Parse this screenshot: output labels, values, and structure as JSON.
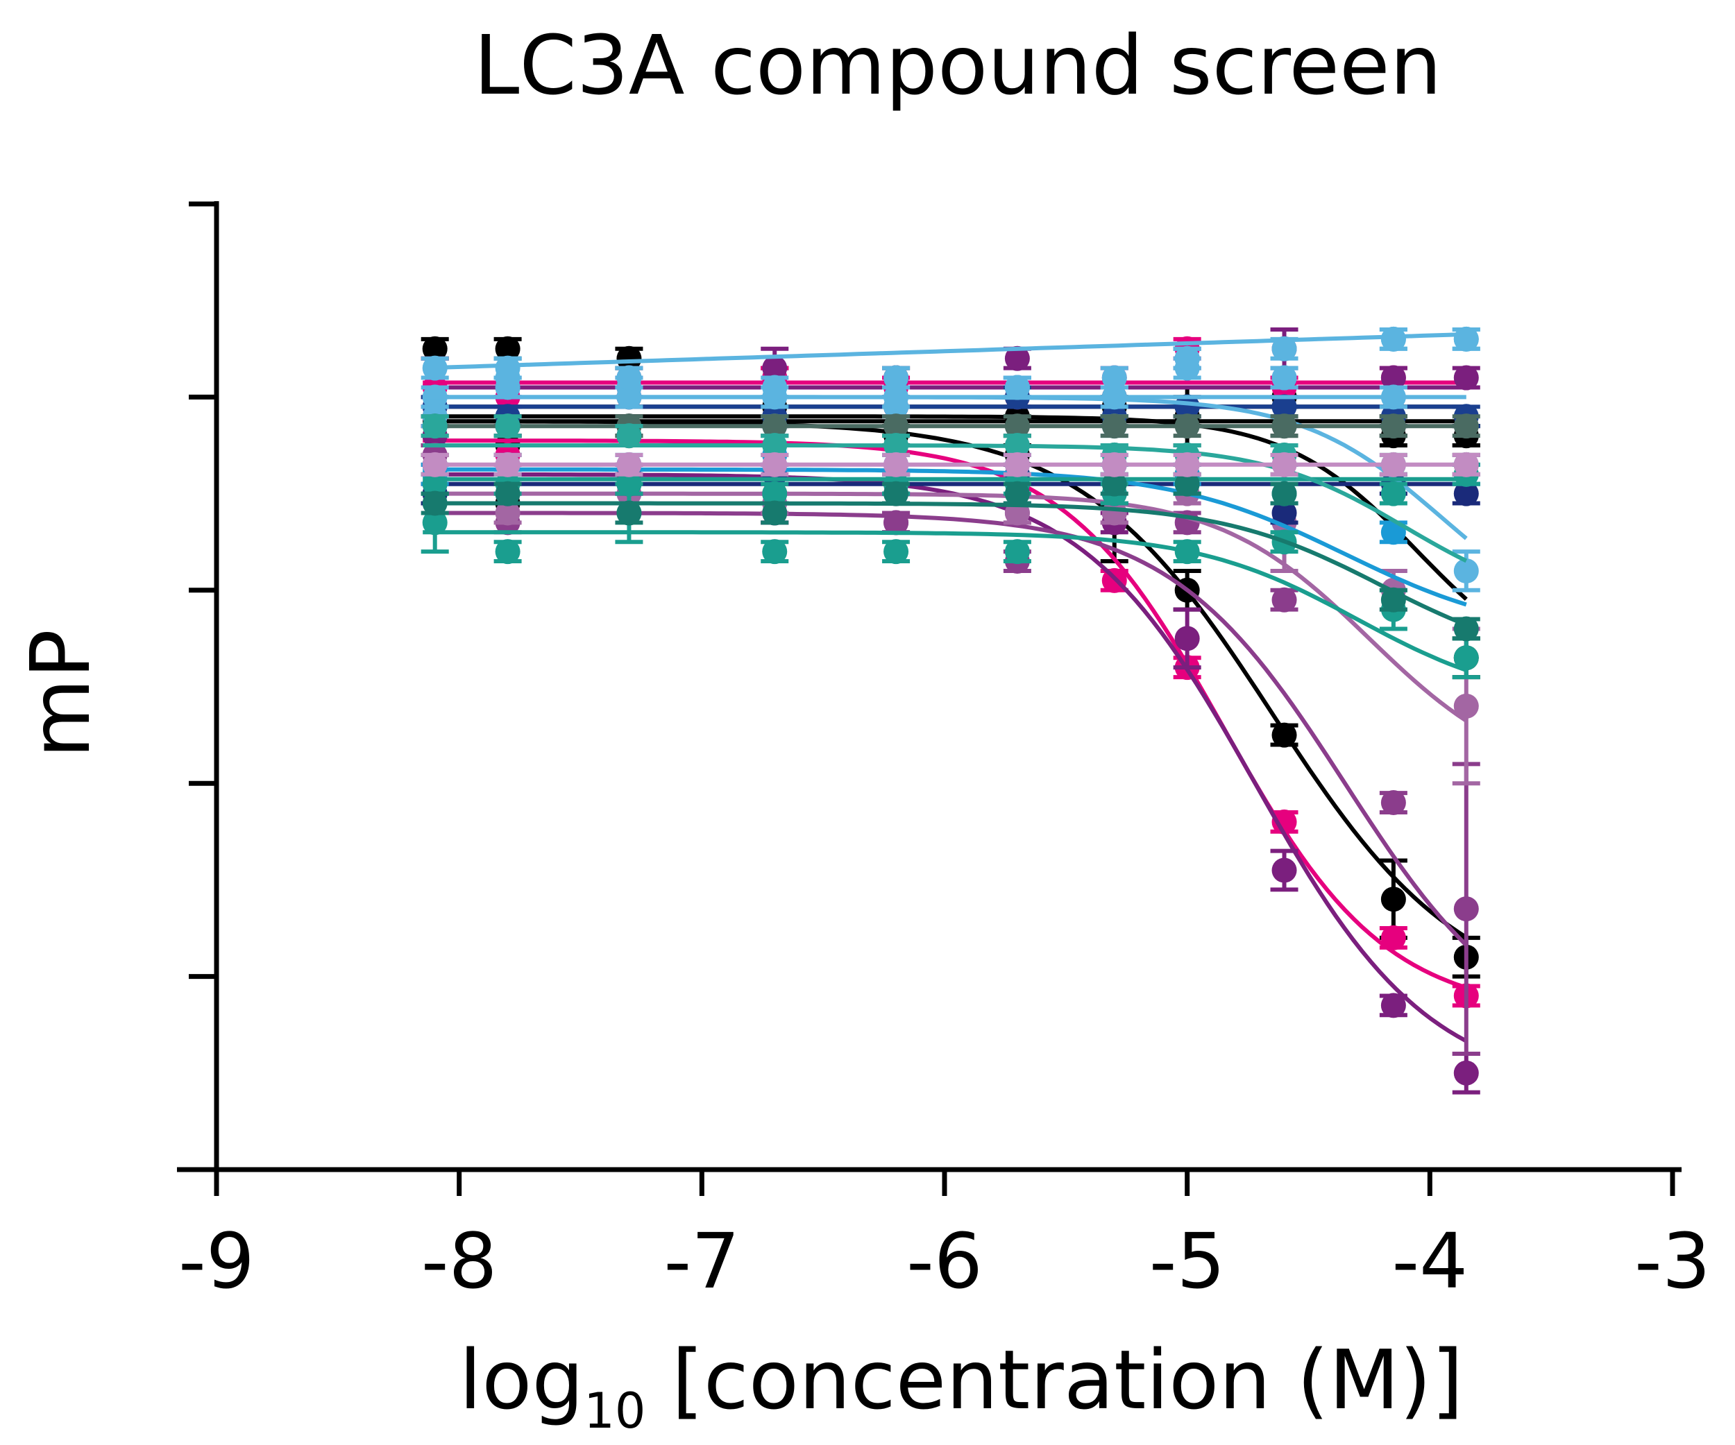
{
  "chart_data": {
    "type": "scatter",
    "title": "LC3A compound screen",
    "xlabel_main": "log",
    "xlabel_sub": "10",
    "xlabel_rest": " [concentration (M)]",
    "ylabel": "mP",
    "xlim": [
      -9,
      -3
    ],
    "ylim": [
      0,
      100
    ],
    "x_ticks": [
      -9,
      -8,
      -7,
      -6,
      -5,
      -4,
      -3
    ],
    "x_tick_labels": [
      "-9",
      "-8",
      "-7",
      "-6",
      "-5",
      "-4",
      "-3"
    ],
    "y_ticks": [
      0,
      20,
      40,
      60,
      80,
      100
    ],
    "y_tick_labels": [
      "",
      "",
      "",
      "",
      "",
      ""
    ],
    "x": [
      -8.1,
      -7.8,
      -7.3,
      -6.7,
      -6.2,
      -5.7,
      -5.3,
      -5.0,
      -4.6,
      -4.15,
      -3.85
    ],
    "series": [
      {
        "color": "#000000",
        "values": [
          76,
          77,
          77,
          79,
          77,
          78,
          67,
          60,
          45,
          28,
          22
        ],
        "errors": [
          1,
          1,
          1,
          1,
          2,
          3,
          4,
          2,
          1,
          4,
          2
        ],
        "curve": "sigmoid",
        "top": 77.5,
        "bottom": 17,
        "ec50": -4.65,
        "hill": 1.1
      },
      {
        "color": "#000000",
        "values": [
          73,
          75,
          76,
          78,
          76,
          77,
          79,
          78,
          80,
          77,
          76
        ],
        "errors": [
          1,
          1,
          1,
          1,
          1,
          1,
          1,
          3,
          1,
          1,
          1
        ],
        "curve": "sigmoid",
        "top": 78,
        "bottom": 50,
        "ec50": -4.05,
        "hill": 1.6
      },
      {
        "color": "#000000",
        "values": [
          70,
          69,
          71,
          70,
          71,
          74,
          79,
          78,
          77,
          77,
          53
        ],
        "errors": [
          1,
          1,
          1,
          1,
          1,
          1,
          1,
          1,
          1,
          1,
          2
        ],
        "curve": "flat",
        "level": 77.5
      },
      {
        "color": "#000000",
        "values": [
          85,
          85,
          84,
          82,
          82,
          80,
          80,
          79,
          80,
          76,
          76
        ],
        "errors": [
          1,
          1,
          1,
          1,
          1,
          1,
          1,
          1,
          1,
          1,
          1
        ],
        "curve": "flat",
        "level": 79
      },
      {
        "color": "#e6007e",
        "values": [
          81,
          74,
          80,
          82,
          79,
          81,
          61,
          52,
          36,
          24,
          18
        ],
        "errors": [
          3,
          1,
          1,
          1,
          1,
          1,
          1,
          1,
          1,
          1,
          1
        ],
        "curve": "sigmoid",
        "top": 75.5,
        "bottom": 16,
        "ec50": -4.85,
        "hill": 1.3
      },
      {
        "color": "#e6007e",
        "values": [
          78,
          80,
          81,
          82,
          81,
          80,
          82,
          85,
          81,
          82,
          73
        ],
        "errors": [
          1,
          1,
          1,
          1,
          1,
          1,
          1,
          1,
          1,
          1,
          1
        ],
        "curve": "flat",
        "level": 81.5
      },
      {
        "color": "#7b1f7e",
        "values": [
          76,
          77,
          72,
          68,
          67,
          68,
          67,
          55,
          31,
          17,
          10
        ],
        "errors": [
          1,
          1,
          1,
          1,
          1,
          1,
          1,
          3,
          2,
          1,
          2
        ],
        "curve": "sigmoid",
        "top": 72,
        "bottom": 8,
        "ec50": -4.72,
        "hill": 1.2
      },
      {
        "color": "#7b1f7e",
        "values": [
          79,
          81,
          82,
          83,
          82,
          84,
          80,
          84,
          85,
          82,
          82
        ],
        "errors": [
          1,
          1,
          1,
          2,
          1,
          1,
          1,
          1,
          2,
          1,
          1
        ],
        "curve": "flat",
        "level": 81
      },
      {
        "color": "#8b3d8c",
        "values": [
          74,
          67,
          72,
          68,
          67,
          63,
          68,
          67,
          59,
          38,
          27
        ],
        "errors": [
          1,
          1,
          1,
          1,
          1,
          1,
          1,
          1,
          1,
          1,
          15
        ],
        "curve": "sigmoid",
        "top": 68,
        "bottom": 12,
        "ec50": -4.35,
        "hill": 1.2
      },
      {
        "color": "#a366a3",
        "values": [
          71,
          68,
          70,
          69,
          70,
          68,
          68,
          70,
          67,
          60,
          48
        ],
        "errors": [
          1,
          1,
          1,
          1,
          1,
          1,
          1,
          1,
          5,
          2,
          8
        ],
        "curve": "sigmoid",
        "top": 70,
        "bottom": 40,
        "ec50": -4.25,
        "hill": 1.4
      },
      {
        "color": "#1a2a7a",
        "values": [
          70,
          70,
          71,
          72,
          71,
          72,
          70,
          72,
          68,
          71,
          70
        ],
        "errors": [
          1,
          1,
          1,
          1,
          1,
          1,
          1,
          1,
          1,
          1,
          1
        ],
        "curve": "flat",
        "level": 71
      },
      {
        "color": "#1a3f8f",
        "values": [
          79,
          78,
          80,
          78,
          79,
          80,
          78,
          79,
          79,
          78,
          78
        ],
        "errors": [
          1,
          1,
          1,
          1,
          1,
          1,
          1,
          1,
          1,
          1,
          1
        ],
        "curve": "flat",
        "level": 79
      },
      {
        "color": "#1a9ad6",
        "values": [
          72,
          73,
          73,
          74,
          73,
          73,
          73,
          72,
          70,
          66,
          72
        ],
        "errors": [
          1,
          1,
          1,
          1,
          1,
          1,
          1,
          1,
          1,
          1,
          1
        ],
        "curve": "sigmoid",
        "top": 72.5,
        "bottom": 55,
        "ec50": -4.35,
        "hill": 1.2
      },
      {
        "color": "#5bb4e0",
        "values": [
          80,
          82,
          81,
          77,
          79,
          81,
          77,
          83,
          82,
          86,
          86
        ],
        "errors": [
          1,
          2,
          1,
          1,
          1,
          1,
          1,
          1,
          1,
          1,
          1
        ],
        "curve": "flat",
        "level": 80
      },
      {
        "color": "#5bb4e0",
        "values": [
          78,
          81,
          80,
          80,
          80,
          81,
          80,
          84,
          82,
          80,
          62
        ],
        "errors": [
          1,
          1,
          1,
          1,
          1,
          1,
          1,
          1,
          1,
          1,
          2
        ],
        "curve": "sigmoid",
        "top": 80,
        "bottom": 55,
        "ec50": -3.95,
        "hill": 1.5
      },
      {
        "color": "#5bb4e0",
        "values": [
          83,
          83,
          82,
          81,
          82,
          81,
          82,
          84,
          85,
          86,
          86
        ],
        "errors": [
          1,
          1,
          1,
          1,
          1,
          1,
          1,
          1,
          1,
          1,
          1
        ],
        "curve": "rising",
        "from": 83,
        "to": 86.5
      },
      {
        "color": "#1a9e8f",
        "values": [
          67,
          64,
          68,
          64,
          64,
          64,
          74,
          64,
          65,
          58,
          53
        ],
        "errors": [
          3,
          1,
          3,
          1,
          1,
          1,
          1,
          1,
          1,
          2,
          2
        ],
        "curve": "sigmoid",
        "top": 66,
        "bottom": 48,
        "ec50": -4.3,
        "hill": 1.3
      },
      {
        "color": "#1a9e8f",
        "values": [
          71,
          71,
          71,
          70,
          71,
          71,
          70,
          71,
          70,
          70,
          72
        ],
        "errors": [
          1,
          1,
          1,
          1,
          1,
          1,
          1,
          1,
          1,
          1,
          1
        ],
        "curve": "flat",
        "level": 71.5
      },
      {
        "color": "#177a6e",
        "values": [
          69,
          70,
          68,
          68,
          70,
          70,
          71,
          71,
          70,
          59,
          56
        ],
        "errors": [
          1,
          1,
          1,
          1,
          1,
          1,
          1,
          1,
          1,
          1,
          1
        ],
        "curve": "sigmoid",
        "top": 69,
        "bottom": 52,
        "ec50": -4.2,
        "hill": 1.3
      },
      {
        "color": "#4a6b62",
        "values": [
          77,
          77,
          77,
          77,
          77,
          77,
          77,
          77,
          77,
          77,
          77
        ],
        "errors": [
          1,
          1,
          1,
          1,
          1,
          1,
          1,
          1,
          1,
          1,
          1
        ],
        "curve": "flat",
        "level": 77
      },
      {
        "color": "#2aa79b",
        "values": [
          77,
          77,
          76,
          75,
          75,
          75,
          74,
          74,
          74,
          73,
          73
        ],
        "errors": [
          1,
          1,
          1,
          1,
          1,
          1,
          1,
          1,
          1,
          1,
          1
        ],
        "curve": "sigmoid",
        "top": 75,
        "bottom": 58,
        "ec50": -4.1,
        "hill": 1.5
      },
      {
        "color": "#c28cc2",
        "values": [
          73,
          73,
          73,
          73,
          73,
          73,
          73,
          73,
          73,
          73,
          73
        ],
        "errors": [
          1,
          1,
          1,
          1,
          1,
          1,
          1,
          1,
          1,
          1,
          1
        ],
        "curve": "flat",
        "level": 73
      }
    ]
  }
}
